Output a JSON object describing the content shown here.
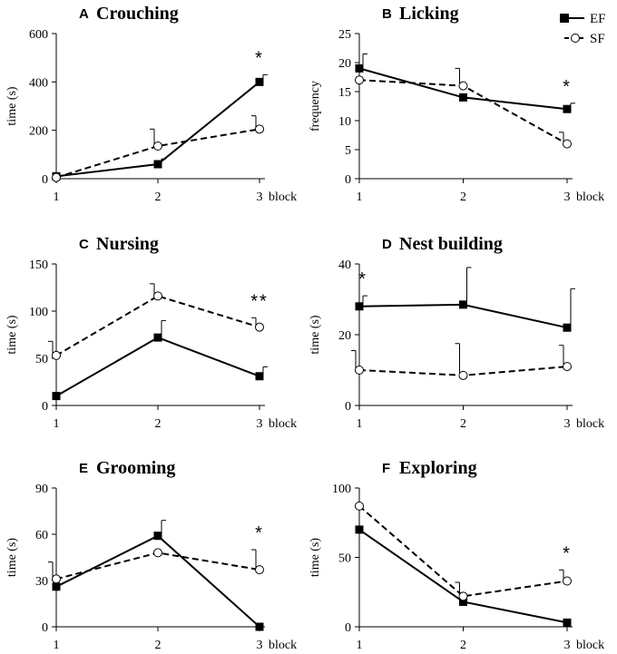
{
  "legend": [
    {
      "series": "EF",
      "label": "EF",
      "marker": "filled-square",
      "line": "solid"
    },
    {
      "series": "SF",
      "label": "SF",
      "marker": "open-circle",
      "line": "dashed"
    }
  ],
  "colors": {
    "ink": "#000000",
    "background": "#ffffff",
    "open_marker_fill": "#ffffff"
  },
  "chart_data": [
    {
      "type": "line",
      "panel_letter": "A",
      "title": "Crouching",
      "ylabel": "time (s)",
      "xlabel": "block",
      "x": [
        1,
        2,
        3
      ],
      "x_ticks": [
        "1",
        "2",
        "3"
      ],
      "ylim": [
        0,
        600
      ],
      "y_ticks": [
        0,
        200,
        400,
        600
      ],
      "series": [
        {
          "name": "EF",
          "values": [
            10,
            60,
            400
          ],
          "errors": [
            0,
            22,
            30
          ]
        },
        {
          "name": "SF",
          "values": [
            5,
            135,
            205
          ],
          "errors": [
            0,
            70,
            55
          ]
        }
      ],
      "significance": [
        {
          "x": 3,
          "label": "*"
        }
      ]
    },
    {
      "type": "line",
      "panel_letter": "B",
      "title": "Licking",
      "ylabel": "frequency",
      "xlabel": "block",
      "x": [
        1,
        2,
        3
      ],
      "x_ticks": [
        "1",
        "2",
        "3"
      ],
      "ylim": [
        0,
        25
      ],
      "y_ticks": [
        0,
        5,
        10,
        15,
        20,
        25
      ],
      "series": [
        {
          "name": "EF",
          "values": [
            19,
            14,
            12
          ],
          "errors": [
            2.5,
            0,
            1
          ]
        },
        {
          "name": "SF",
          "values": [
            17,
            16,
            6
          ],
          "errors": [
            0,
            3,
            2
          ]
        }
      ],
      "significance": [
        {
          "x": 3,
          "label": "*"
        }
      ]
    },
    {
      "type": "line",
      "panel_letter": "C",
      "title": "Nursing",
      "ylabel": "time (s)",
      "xlabel": "block",
      "x": [
        1,
        2,
        3
      ],
      "x_ticks": [
        "1",
        "2",
        "3"
      ],
      "ylim": [
        0,
        150
      ],
      "y_ticks": [
        0,
        50,
        100,
        150
      ],
      "series": [
        {
          "name": "EF",
          "values": [
            10,
            72,
            31
          ],
          "errors": [
            0,
            18,
            10
          ]
        },
        {
          "name": "SF",
          "values": [
            53,
            116,
            83
          ],
          "errors": [
            15,
            13,
            10
          ]
        }
      ],
      "significance": [
        {
          "x": 3,
          "label": "**"
        }
      ]
    },
    {
      "type": "line",
      "panel_letter": "D",
      "title": "Nest building",
      "ylabel": "time (s)",
      "xlabel": "block",
      "x": [
        1,
        2,
        3
      ],
      "x_ticks": [
        "1",
        "2",
        "3"
      ],
      "ylim": [
        0,
        40
      ],
      "y_ticks": [
        0,
        20,
        40
      ],
      "series": [
        {
          "name": "EF",
          "values": [
            28,
            28.5,
            22
          ],
          "errors": [
            3,
            10.5,
            11
          ]
        },
        {
          "name": "SF",
          "values": [
            10,
            8.5,
            11
          ],
          "errors": [
            5.5,
            9,
            6
          ]
        }
      ],
      "significance": [
        {
          "x": 1,
          "label": "*"
        }
      ]
    },
    {
      "type": "line",
      "panel_letter": "E",
      "title": "Grooming",
      "ylabel": "time (s)",
      "xlabel": "block",
      "x": [
        1,
        2,
        3
      ],
      "x_ticks": [
        "1",
        "2",
        "3"
      ],
      "ylim": [
        0,
        90
      ],
      "y_ticks": [
        0,
        30,
        60,
        90
      ],
      "series": [
        {
          "name": "EF",
          "values": [
            26,
            59,
            0
          ],
          "errors": [
            0,
            10,
            0
          ]
        },
        {
          "name": "SF",
          "values": [
            31,
            48,
            37
          ],
          "errors": [
            11,
            0,
            13
          ]
        }
      ],
      "significance": [
        {
          "x": 3,
          "label": "*"
        }
      ]
    },
    {
      "type": "line",
      "panel_letter": "F",
      "title": "Exploring",
      "ylabel": "time (s)",
      "xlabel": "block",
      "x": [
        1,
        2,
        3
      ],
      "x_ticks": [
        "1",
        "2",
        "3"
      ],
      "ylim": [
        0,
        100
      ],
      "y_ticks": [
        0,
        50,
        100
      ],
      "series": [
        {
          "name": "EF",
          "values": [
            70,
            18,
            3
          ],
          "errors": [
            0,
            0,
            0
          ]
        },
        {
          "name": "SF",
          "values": [
            87,
            22,
            33
          ],
          "errors": [
            0,
            10,
            8
          ]
        }
      ],
      "significance": [
        {
          "x": 3,
          "label": "*"
        }
      ]
    }
  ]
}
